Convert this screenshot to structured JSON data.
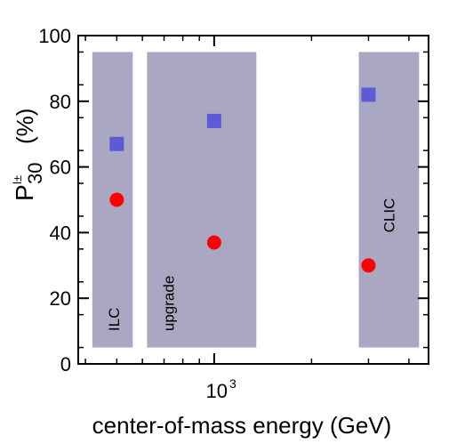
{
  "chart_data": {
    "type": "scatter",
    "xlabel": "center-of-mass energy (GeV)",
    "ylabel": {
      "base": "P",
      "superscript": "l±",
      "subscript": "30",
      "unit": "(%)"
    },
    "x_scale": "log",
    "xlim": [
      380,
      4600
    ],
    "ylim": [
      0,
      100
    ],
    "x_ticklabel": {
      "base": "10",
      "exponent": "3"
    },
    "y_ticks": [
      "0",
      "20",
      "40",
      "60",
      "80",
      "100"
    ],
    "bands": [
      {
        "label": "ILC",
        "x_from": 420,
        "x_to": 560,
        "y_from": 5,
        "y_to": 95
      },
      {
        "label": "upgrade",
        "x_from": 620,
        "x_to": 1350,
        "y_from": 5,
        "y_to": 95
      },
      {
        "label": "CLIC",
        "x_from": 2800,
        "x_to": 4300,
        "y_from": 5,
        "y_to": 95
      }
    ],
    "series": [
      {
        "marker": "square",
        "color": "#5b5bd8",
        "points": [
          {
            "x": 500,
            "y": 67
          },
          {
            "x": 1000,
            "y": 74
          },
          {
            "x": 3000,
            "y": 82
          }
        ]
      },
      {
        "marker": "circle",
        "color": "#ff0000",
        "points": [
          {
            "x": 500,
            "y": 50
          },
          {
            "x": 1000,
            "y": 37
          },
          {
            "x": 3000,
            "y": 30
          }
        ]
      }
    ],
    "colors": {
      "band": "#a9a7c2",
      "axis": "#000000"
    }
  }
}
